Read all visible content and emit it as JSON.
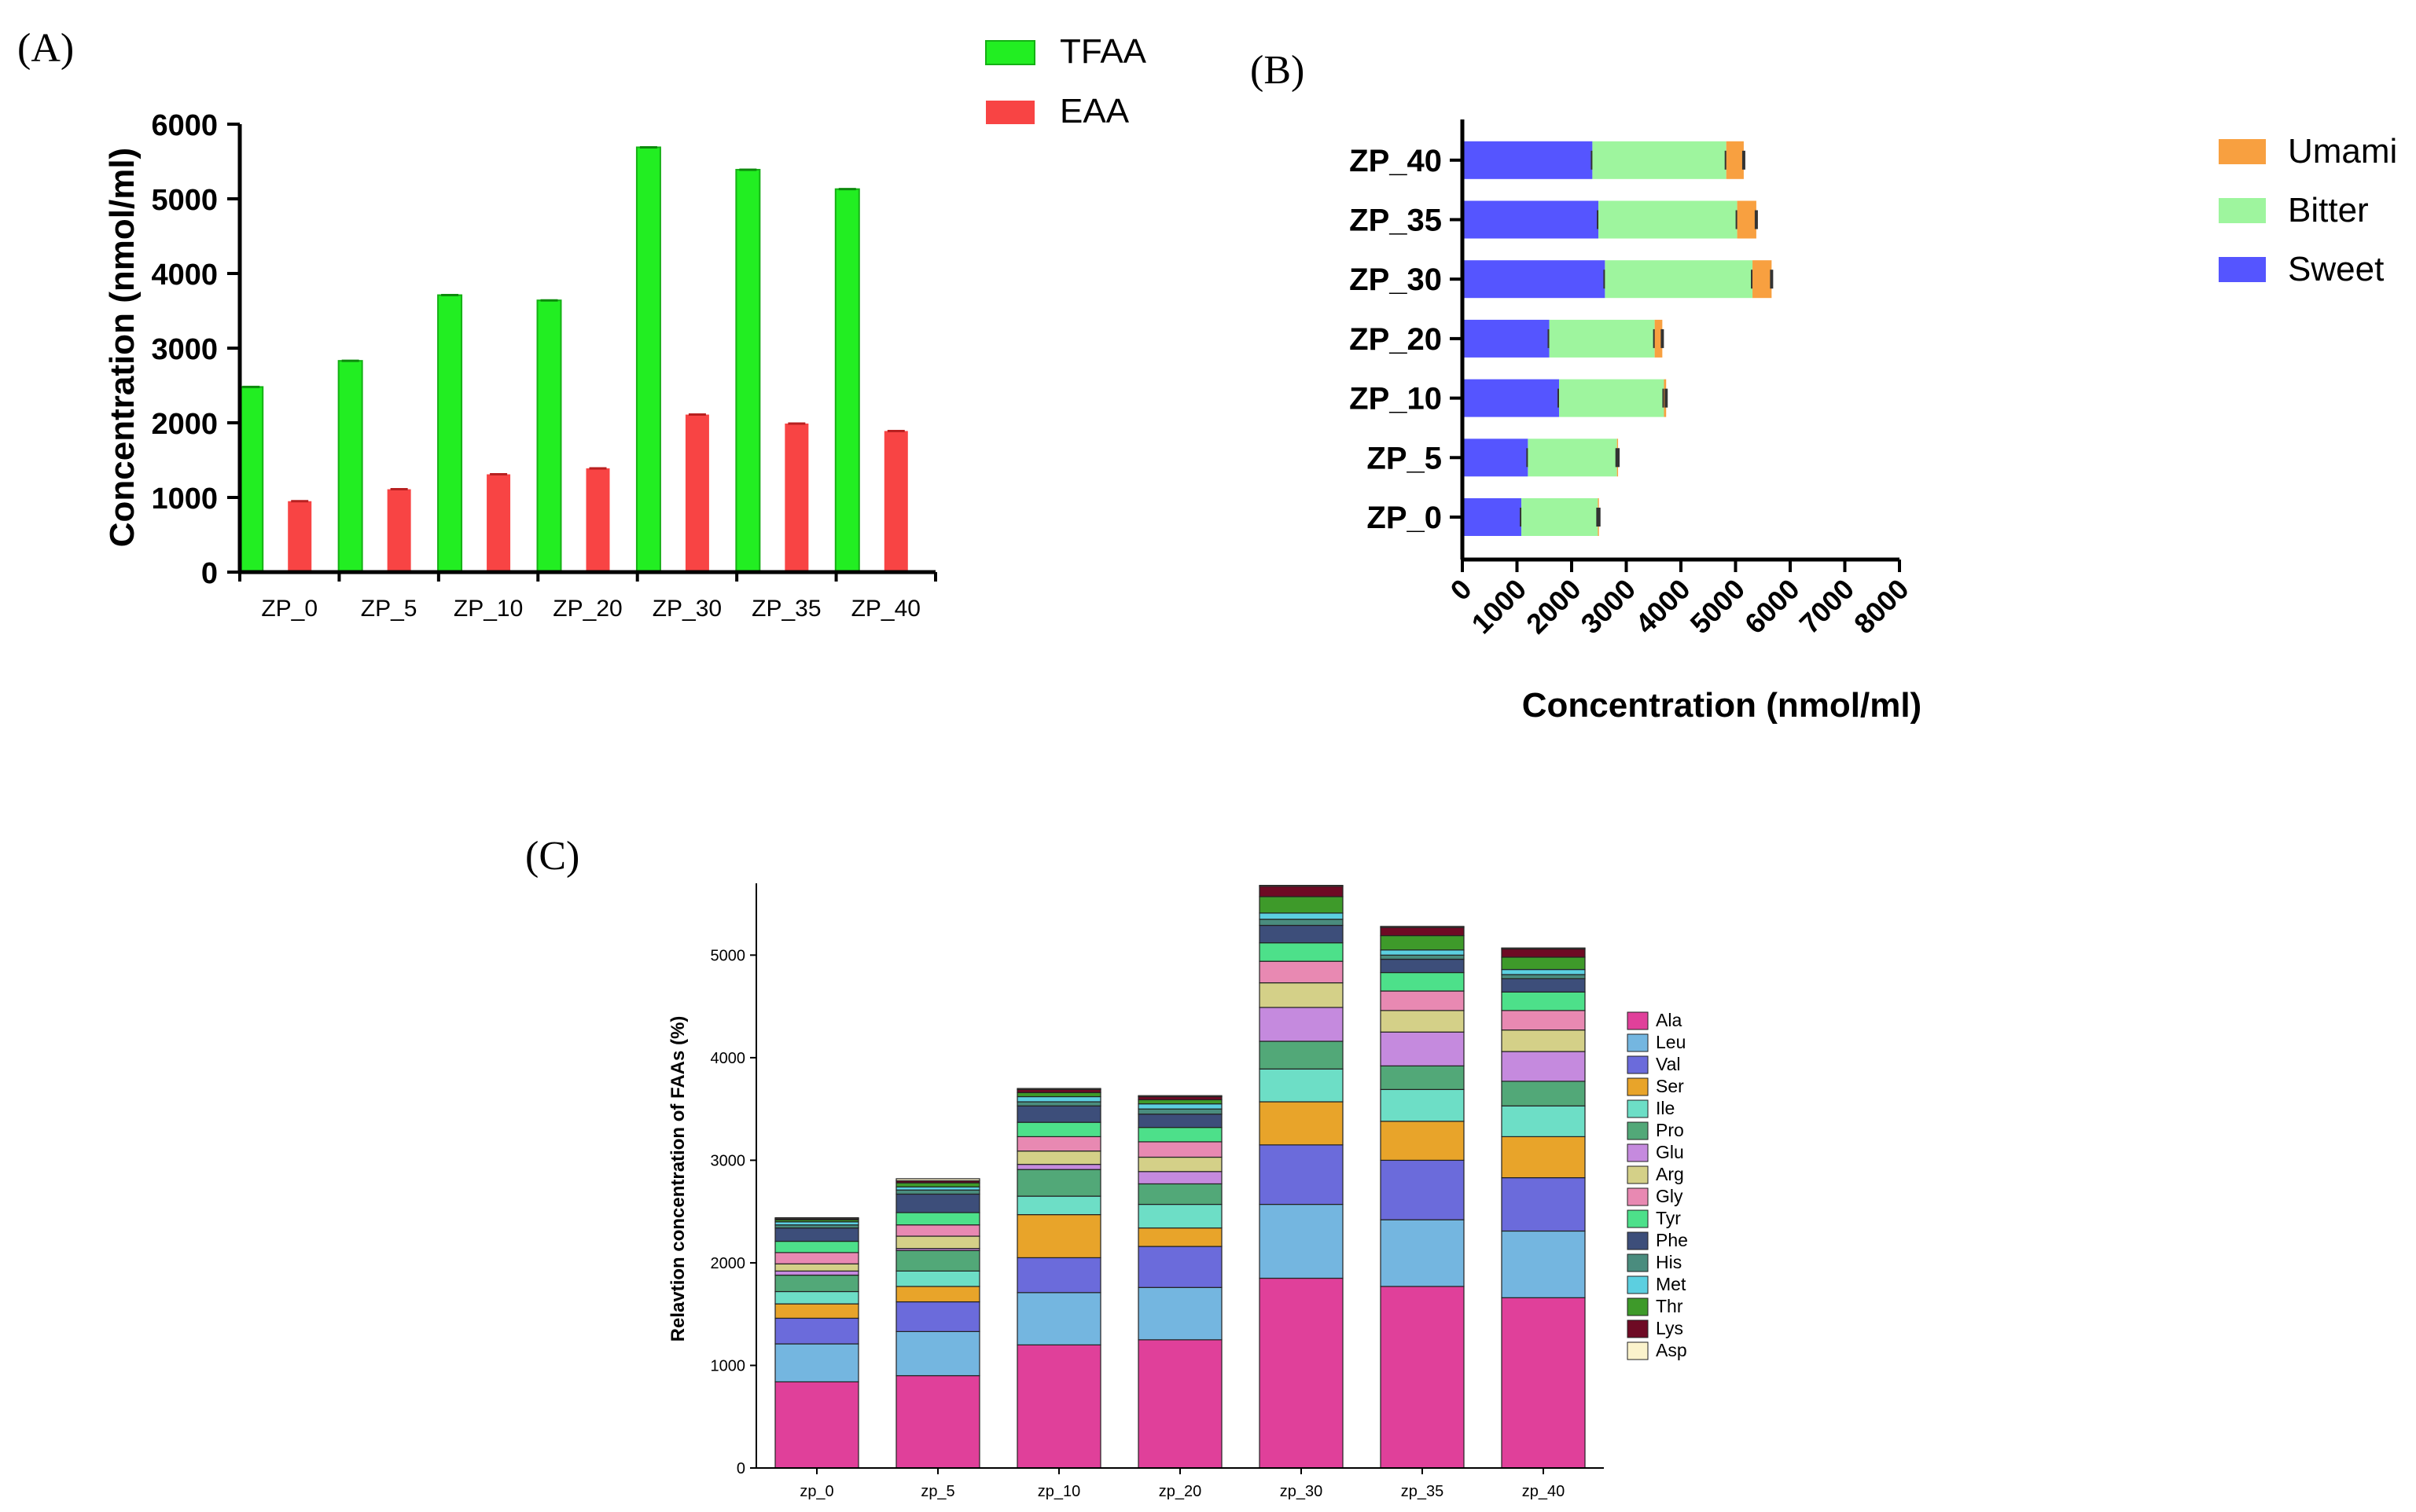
{
  "panels": {
    "a": {
      "label": "(A)"
    },
    "b": {
      "label": "(B)"
    },
    "c": {
      "label": "(C)"
    }
  },
  "chart_data": [
    {
      "id": "A",
      "type": "bar",
      "title": "",
      "xlabel": "",
      "ylabel": "Concentration (nmol/ml)",
      "ylim": [
        0,
        6000
      ],
      "yticks": [
        0,
        1000,
        2000,
        3000,
        4000,
        5000,
        6000
      ],
      "legend_position": "top-right",
      "categories": [
        "ZP_0",
        "ZP_5",
        "ZP_10",
        "ZP_20",
        "ZP_30",
        "ZP_35",
        "ZP_40"
      ],
      "series": [
        {
          "name": "TFAA",
          "color": "#22ee22",
          "values": [
            2480,
            2830,
            3710,
            3640,
            5690,
            5390,
            5130
          ]
        },
        {
          "name": "EAA",
          "color": "#f84444",
          "values": [
            950,
            1110,
            1310,
            1390,
            2110,
            1990,
            1890
          ]
        }
      ]
    },
    {
      "id": "B",
      "type": "bar",
      "orientation": "horizontal",
      "stacked": true,
      "title": "",
      "xlabel": "Concentration (nmol/ml)",
      "ylabel": "",
      "xlim": [
        0,
        8000
      ],
      "xticks": [
        0,
        1000,
        2000,
        3000,
        4000,
        5000,
        6000,
        7000,
        8000
      ],
      "legend_position": "right",
      "categories": [
        "ZP_0",
        "ZP_5",
        "ZP_10",
        "ZP_20",
        "ZP_30",
        "ZP_35",
        "ZP_40"
      ],
      "series": [
        {
          "name": "Sweet",
          "color": "#5555ff",
          "values": [
            1080,
            1200,
            1770,
            1590,
            2610,
            2490,
            2380
          ]
        },
        {
          "name": "Bitter",
          "color": "#9ef59e",
          "values": [
            1400,
            1630,
            1920,
            1930,
            2700,
            2540,
            2450
          ]
        },
        {
          "name": "Umami",
          "color": "#f8a040",
          "values": [
            20,
            20,
            40,
            140,
            350,
            350,
            320
          ]
        }
      ],
      "legend_order": [
        "Umami",
        "Bitter",
        "Sweet"
      ]
    },
    {
      "id": "C",
      "type": "bar",
      "stacked": true,
      "title": "",
      "xlabel": "",
      "ylabel": "Relavtion concentration of FAAs (%)",
      "ylim": [
        0,
        5700
      ],
      "yticks": [
        0,
        1000,
        2000,
        3000,
        4000,
        5000
      ],
      "legend_position": "right",
      "categories": [
        "zp_0",
        "zp_5",
        "zp_10",
        "zp_20",
        "zp_30",
        "zp_35",
        "zp_40"
      ],
      "series": [
        {
          "name": "Ala",
          "color": "#e0409a",
          "values": [
            840,
            900,
            1200,
            1250,
            1850,
            1770,
            1660
          ]
        },
        {
          "name": "Leu",
          "color": "#74b6e0",
          "values": [
            370,
            430,
            510,
            510,
            720,
            650,
            650
          ]
        },
        {
          "name": "Val",
          "color": "#6b6bdb",
          "values": [
            250,
            290,
            340,
            400,
            580,
            580,
            520
          ]
        },
        {
          "name": "Ser",
          "color": "#e8a42a",
          "values": [
            140,
            150,
            420,
            180,
            420,
            380,
            400
          ]
        },
        {
          "name": "Ile",
          "color": "#6ddec6",
          "values": [
            120,
            150,
            180,
            230,
            320,
            310,
            300
          ]
        },
        {
          "name": "Pro",
          "color": "#52a878",
          "values": [
            160,
            200,
            260,
            200,
            270,
            230,
            240
          ]
        },
        {
          "name": "Glu",
          "color": "#c58ade",
          "values": [
            40,
            20,
            50,
            120,
            330,
            330,
            290
          ]
        },
        {
          "name": "Arg",
          "color": "#d4d088",
          "values": [
            70,
            120,
            130,
            140,
            240,
            210,
            210
          ]
        },
        {
          "name": "Gly",
          "color": "#e889b2",
          "values": [
            110,
            110,
            140,
            150,
            210,
            190,
            190
          ]
        },
        {
          "name": "Tyr",
          "color": "#4de08a",
          "values": [
            110,
            120,
            140,
            140,
            180,
            180,
            180
          ]
        },
        {
          "name": "Phe",
          "color": "#3d4e7a",
          "values": [
            130,
            180,
            160,
            130,
            170,
            130,
            130
          ]
        },
        {
          "name": "His",
          "color": "#4a8c7e",
          "values": [
            30,
            40,
            40,
            50,
            60,
            40,
            40
          ]
        },
        {
          "name": "Met",
          "color": "#5ccfe0",
          "values": [
            30,
            30,
            50,
            50,
            60,
            50,
            50
          ]
        },
        {
          "name": "Thr",
          "color": "#3e9a2a",
          "values": [
            20,
            40,
            40,
            40,
            160,
            140,
            120
          ]
        },
        {
          "name": "Lys",
          "color": "#6e0a24",
          "values": [
            10,
            20,
            30,
            30,
            100,
            80,
            80
          ]
        },
        {
          "name": "Asp",
          "color": "#fbf3cc",
          "values": [
            10,
            20,
            10,
            10,
            10,
            10,
            10
          ]
        }
      ]
    }
  ]
}
